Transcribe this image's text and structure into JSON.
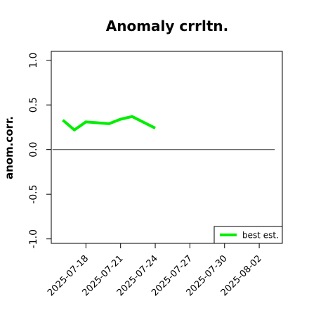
{
  "chart_data": {
    "type": "line",
    "title": "Anomaly crrltn.",
    "xlabel": "",
    "ylabel": "anom.corr.",
    "x": [
      "2025-07-16",
      "2025-07-17",
      "2025-07-18",
      "2025-07-19",
      "2025-07-20",
      "2025-07-21",
      "2025-07-22",
      "2025-07-23",
      "2025-07-24"
    ],
    "series": [
      {
        "name": "best est.",
        "color": "#00ee00",
        "values": [
          0.33,
          0.22,
          0.31,
          null,
          0.29,
          0.34,
          0.37,
          null,
          0.24
        ]
      }
    ],
    "reference_line": {
      "y": 0.0,
      "color": "#555555"
    },
    "xlim": [
      "2025-07-15",
      "2025-08-04"
    ],
    "ylim": [
      -1.05,
      1.1
    ],
    "yticks": [
      -1.0,
      -0.5,
      0.0,
      0.5,
      1.0
    ],
    "ytick_labels": [
      "-1.0",
      "-0.5",
      "0.0",
      "0.5",
      "1.0"
    ],
    "xticks": [
      "2025-07-18",
      "2025-07-21",
      "2025-07-24",
      "2025-07-27",
      "2025-07-30",
      "2025-08-02"
    ],
    "xtick_labels": [
      "2025-07-18",
      "2025-07-21",
      "2025-07-24",
      "2025-07-27",
      "2025-07-30",
      "2025-08-02"
    ],
    "xtick_colors": [
      "#000000",
      "#000000",
      "#228b22",
      "#000000",
      "#000000",
      "#000000"
    ],
    "grid": false,
    "legend": {
      "position": "bottom-right",
      "entries": [
        "best est."
      ]
    }
  }
}
